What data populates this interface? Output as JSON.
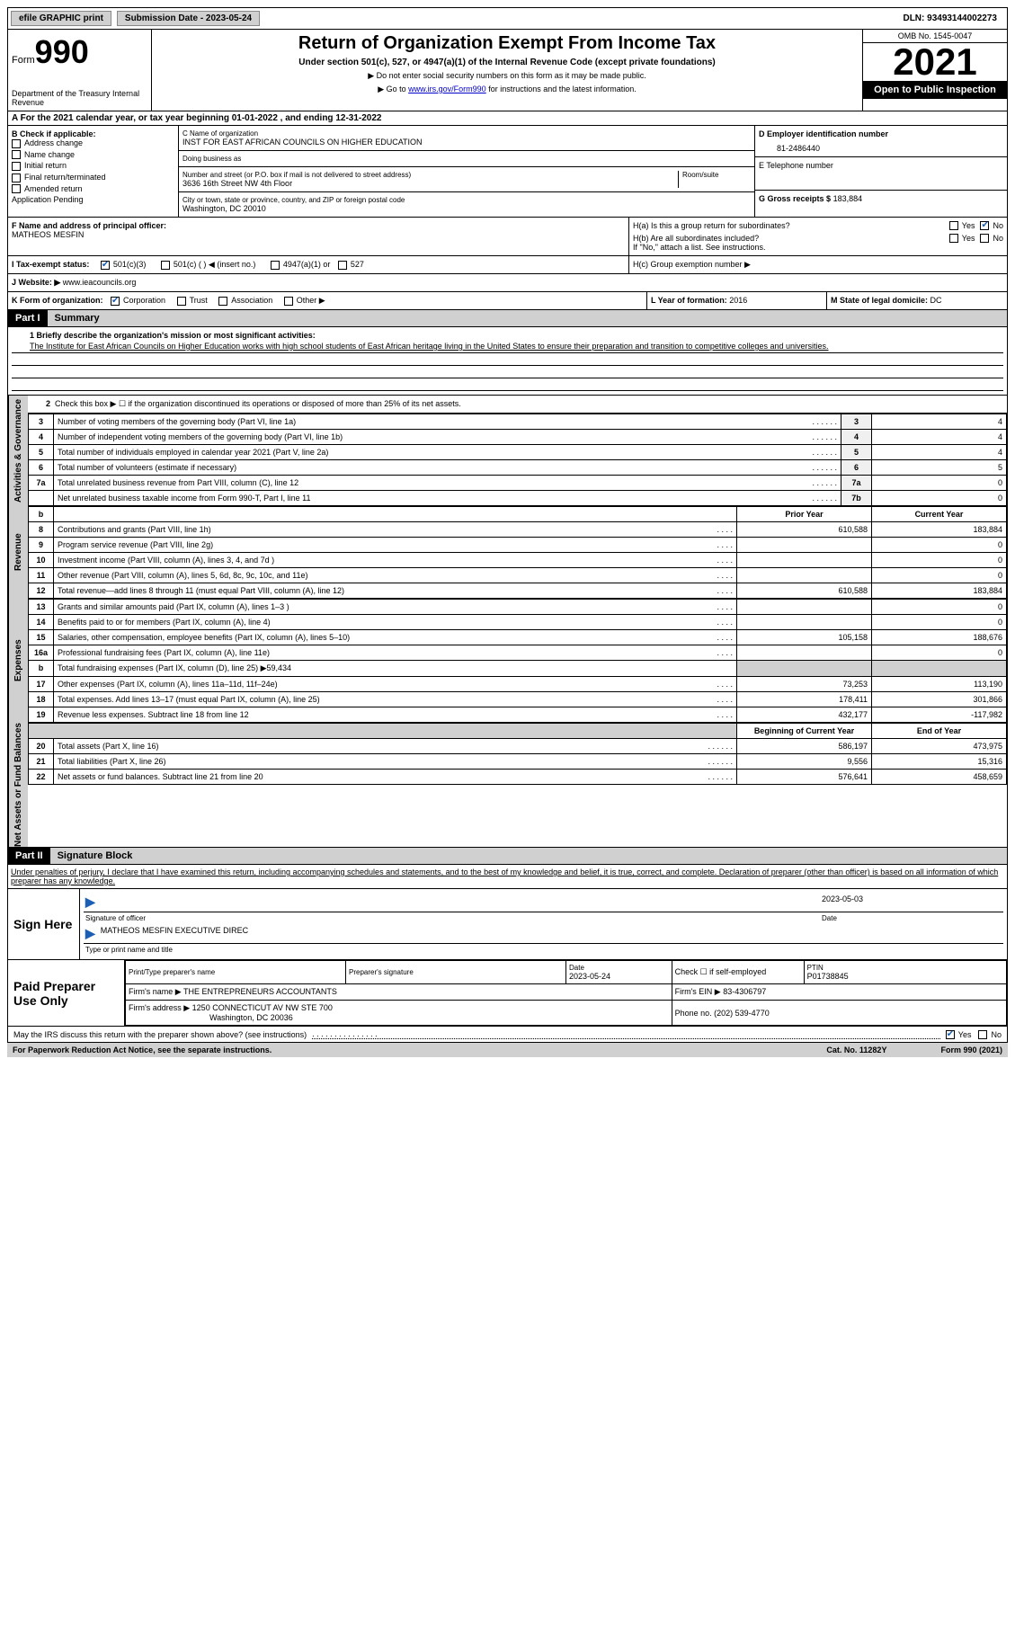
{
  "topbar": {
    "efile_label": "efile GRAPHIC print",
    "submission_label": "Submission Date - 2023-05-24",
    "dln": "DLN: 93493144002273"
  },
  "header": {
    "form_prefix": "Form",
    "form_number": "990",
    "department": "Department of the Treasury Internal Revenue",
    "title": "Return of Organization Exempt From Income Tax",
    "subtitle": "Under section 501(c), 527, or 4947(a)(1) of the Internal Revenue Code (except private foundations)",
    "note1": "▶ Do not enter social security numbers on this form as it may be made public.",
    "note2_prefix": "▶ Go to ",
    "note2_link": "www.irs.gov/Form990",
    "note2_suffix": " for instructions and the latest information.",
    "omb": "OMB No. 1545-0047",
    "year": "2021",
    "inspect": "Open to Public Inspection"
  },
  "period": {
    "text": "A For the 2021 calendar year, or tax year beginning 01-01-2022    , and ending 12-31-2022"
  },
  "sectionB": {
    "label": "B Check if applicable:",
    "items": [
      "Address change",
      "Name change",
      "Initial return",
      "Final return/terminated",
      "Amended return",
      "Application Pending"
    ]
  },
  "sectionC": {
    "name_label": "C Name of organization",
    "org_name": "INST FOR EAST AFRICAN COUNCILS ON HIGHER EDUCATION",
    "dba_label": "Doing business as",
    "addr_label": "Number and street (or P.O. box if mail is not delivered to street address)",
    "room_label": "Room/suite",
    "address": "3636 16th Street NW 4th Floor",
    "city_label": "City or town, state or province, country, and ZIP or foreign postal code",
    "city": "Washington, DC  20010"
  },
  "sectionD": {
    "ein_label": "D Employer identification number",
    "ein": "81-2486440",
    "phone_label": "E Telephone number",
    "gross_label": "G Gross receipts $",
    "gross": "183,884"
  },
  "sectionF": {
    "label": "F  Name and address of principal officer:",
    "name": "MATHEOS MESFIN"
  },
  "sectionH": {
    "ha_label": "H(a)  Is this a group return for subordinates?",
    "hb_label": "H(b)  Are all subordinates included?",
    "hb_note": "If \"No,\" attach a list. See instructions.",
    "hc_label": "H(c)  Group exemption number ▶",
    "yes": "Yes",
    "no": "No"
  },
  "sectionI": {
    "label": "I    Tax-exempt status:",
    "opts": [
      "501(c)(3)",
      "501(c) (  ) ◀ (insert no.)",
      "4947(a)(1) or",
      "527"
    ]
  },
  "sectionJ": {
    "label": "J   Website: ▶",
    "url": "www.ieacouncils.org"
  },
  "sectionK": {
    "label": "K Form of organization:",
    "opts": [
      "Corporation",
      "Trust",
      "Association",
      "Other ▶"
    ]
  },
  "sectionL": {
    "label": "L Year of formation:",
    "val": "2016"
  },
  "sectionM": {
    "label": "M State of legal domicile:",
    "val": "DC"
  },
  "part1": {
    "header": "Part I",
    "title": "Summary",
    "mission_label": "1  Briefly describe the organization's mission or most significant activities:",
    "mission": "The Institute for East African Councils on Higher Education works with high school students of East African heritage living in the United States to ensure their preparation and transition to competitive colleges and universities.",
    "line2": "Check this box ▶ ☐  if the organization discontinued its operations or disposed of more than 25% of its net assets.",
    "governance_label": "Activities & Governance",
    "revenue_label": "Revenue",
    "expenses_label": "Expenses",
    "net_label": "Net Assets or Fund Balances",
    "rows_gov": [
      {
        "n": "3",
        "t": "Number of voting members of the governing body (Part VI, line 1a)",
        "b": "3",
        "v": "4"
      },
      {
        "n": "4",
        "t": "Number of independent voting members of the governing body (Part VI, line 1b)",
        "b": "4",
        "v": "4"
      },
      {
        "n": "5",
        "t": "Total number of individuals employed in calendar year 2021 (Part V, line 2a)",
        "b": "5",
        "v": "4"
      },
      {
        "n": "6",
        "t": "Total number of volunteers (estimate if necessary)",
        "b": "6",
        "v": "5"
      },
      {
        "n": "7a",
        "t": "Total unrelated business revenue from Part VIII, column (C), line 12",
        "b": "7a",
        "v": "0"
      },
      {
        "n": "",
        "t": "Net unrelated business taxable income from Form 990-T, Part I, line 11",
        "b": "7b",
        "v": "0"
      }
    ],
    "col_prior": "Prior Year",
    "col_current": "Current Year",
    "rows_rev": [
      {
        "n": "8",
        "t": "Contributions and grants (Part VIII, line 1h)",
        "p": "610,588",
        "c": "183,884"
      },
      {
        "n": "9",
        "t": "Program service revenue (Part VIII, line 2g)",
        "p": "",
        "c": "0"
      },
      {
        "n": "10",
        "t": "Investment income (Part VIII, column (A), lines 3, 4, and 7d )",
        "p": "",
        "c": "0"
      },
      {
        "n": "11",
        "t": "Other revenue (Part VIII, column (A), lines 5, 6d, 8c, 9c, 10c, and 11e)",
        "p": "",
        "c": "0"
      },
      {
        "n": "12",
        "t": "Total revenue—add lines 8 through 11 (must equal Part VIII, column (A), line 12)",
        "p": "610,588",
        "c": "183,884"
      }
    ],
    "rows_exp": [
      {
        "n": "13",
        "t": "Grants and similar amounts paid (Part IX, column (A), lines 1–3 )",
        "p": "",
        "c": "0"
      },
      {
        "n": "14",
        "t": "Benefits paid to or for members (Part IX, column (A), line 4)",
        "p": "",
        "c": "0"
      },
      {
        "n": "15",
        "t": "Salaries, other compensation, employee benefits (Part IX, column (A), lines 5–10)",
        "p": "105,158",
        "c": "188,676"
      },
      {
        "n": "16a",
        "t": "Professional fundraising fees (Part IX, column (A), line 11e)",
        "p": "",
        "c": "0"
      },
      {
        "n": "b",
        "t": "Total fundraising expenses (Part IX, column (D), line 25) ▶59,434",
        "p": "shaded",
        "c": "shaded"
      },
      {
        "n": "17",
        "t": "Other expenses (Part IX, column (A), lines 11a–11d, 11f–24e)",
        "p": "73,253",
        "c": "113,190"
      },
      {
        "n": "18",
        "t": "Total expenses. Add lines 13–17 (must equal Part IX, column (A), line 25)",
        "p": "178,411",
        "c": "301,866"
      },
      {
        "n": "19",
        "t": "Revenue less expenses. Subtract line 18 from line 12",
        "p": "432,177",
        "c": "-117,982"
      }
    ],
    "col_begin": "Beginning of Current Year",
    "col_end": "End of Year",
    "rows_net": [
      {
        "n": "20",
        "t": "Total assets (Part X, line 16)",
        "p": "586,197",
        "c": "473,975"
      },
      {
        "n": "21",
        "t": "Total liabilities (Part X, line 26)",
        "p": "9,556",
        "c": "15,316"
      },
      {
        "n": "22",
        "t": "Net assets or fund balances. Subtract line 21 from line 20",
        "p": "576,641",
        "c": "458,659"
      }
    ]
  },
  "part2": {
    "header": "Part II",
    "title": "Signature Block",
    "penalty": "Under penalties of perjury, I declare that I have examined this return, including accompanying schedules and statements, and to the best of my knowledge and belief, it is true, correct, and complete. Declaration of preparer (other than officer) is based on all information of which preparer has any knowledge.",
    "sign_here": "Sign Here",
    "sig_officer": "Signature of officer",
    "sig_date": "2023-05-03",
    "date_label": "Date",
    "officer_name": "MATHEOS MESFIN  EXECUTIVE DIREC",
    "type_label": "Type or print name and title",
    "paid_label": "Paid Preparer Use Only",
    "prep_name_label": "Print/Type preparer's name",
    "prep_sig_label": "Preparer's signature",
    "prep_date_label": "Date",
    "prep_date": "2023-05-24",
    "check_if": "Check ☐ if self-employed",
    "ptin_label": "PTIN",
    "ptin": "P01738845",
    "firm_name_label": "Firm's name    ▶",
    "firm_name": "THE ENTREPRENEURS ACCOUNTANTS",
    "firm_ein_label": "Firm's EIN ▶",
    "firm_ein": "83-4306797",
    "firm_addr_label": "Firm's address ▶",
    "firm_addr": "1250 CONNECTICUT AV NW STE 700",
    "firm_city": "Washington, DC  20036",
    "firm_phone_label": "Phone no.",
    "firm_phone": "(202) 539-4770"
  },
  "footer": {
    "discuss": "May the IRS discuss this return with the preparer shown above? (see instructions)",
    "yes": "Yes",
    "no": "No",
    "paperwork": "For Paperwork Reduction Act Notice, see the separate instructions.",
    "cat": "Cat. No. 11282Y",
    "form": "Form 990 (2021)"
  }
}
